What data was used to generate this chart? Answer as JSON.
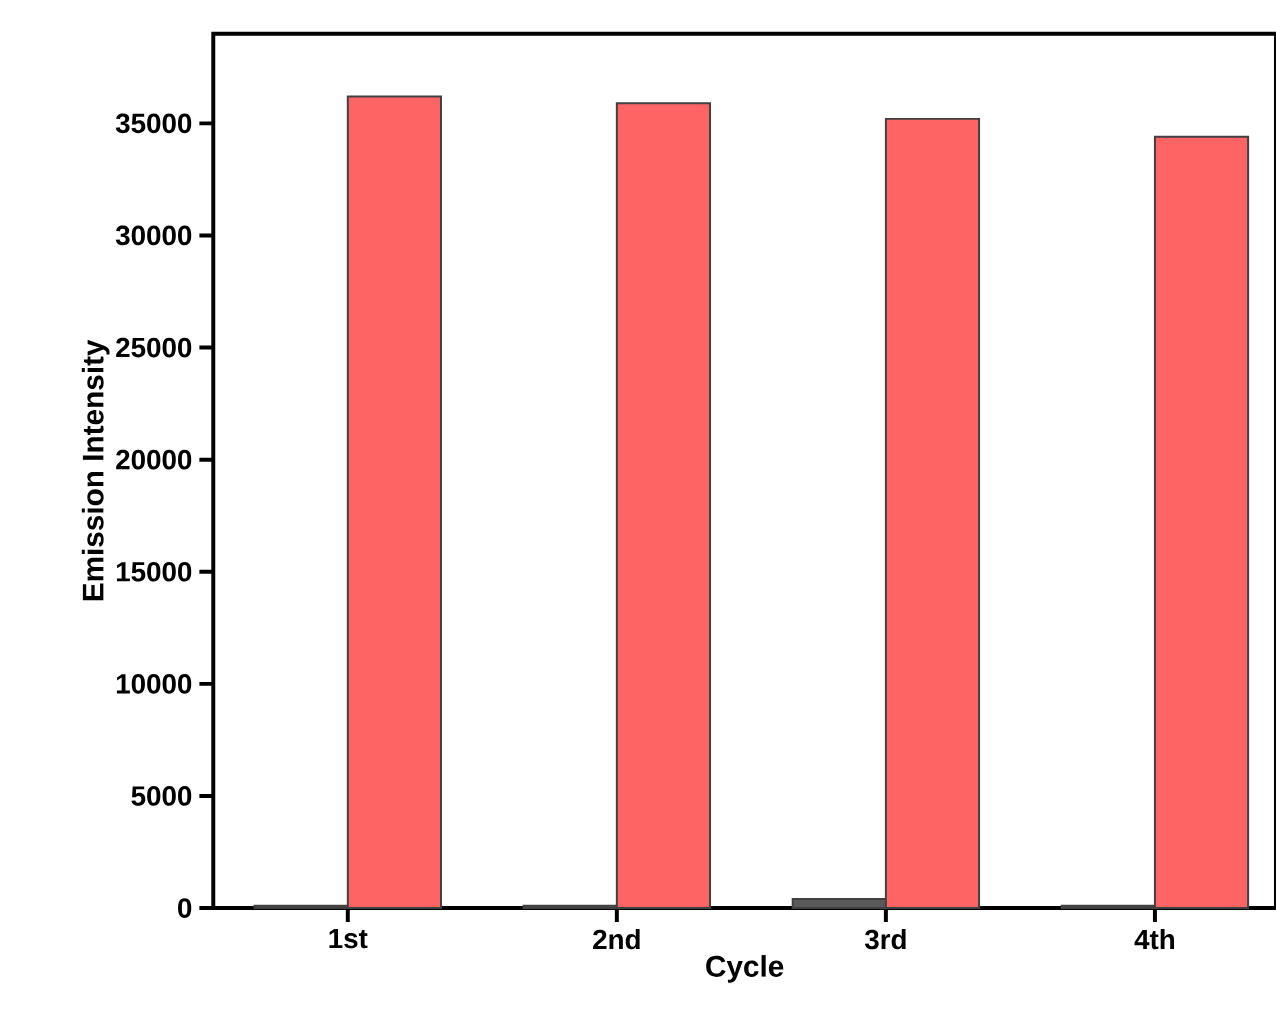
{
  "chart_data": {
    "type": "bar",
    "xlabel": "Cycle",
    "ylabel": "Emission Intensity",
    "categories": [
      "1st",
      "2nd",
      "3rd",
      "4th"
    ],
    "series": [
      {
        "color": "#5a5a5a",
        "values": [
          100,
          100,
          400,
          100
        ]
      },
      {
        "color": "#ff6464",
        "values": [
          36200,
          35900,
          35200,
          34400
        ]
      }
    ],
    "ylim": [
      0,
      39000
    ],
    "yticks": [
      0,
      5000,
      10000,
      15000,
      20000,
      25000,
      30000,
      35000
    ],
    "grid": false
  }
}
